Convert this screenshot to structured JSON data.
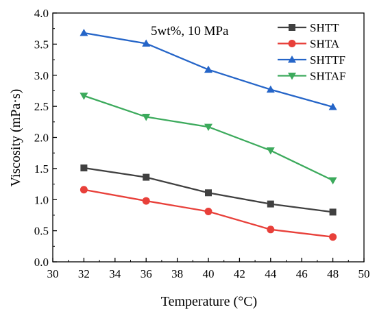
{
  "chart_data": {
    "type": "line",
    "xlabel": "Temperature (°C)",
    "ylabel": "Viscosity (mPa·s)",
    "annotation": "5wt%, 10 MPa",
    "xlim": [
      30,
      50
    ],
    "ylim": [
      0.0,
      4.0
    ],
    "x_ticks": [
      30,
      32,
      34,
      36,
      38,
      40,
      42,
      44,
      46,
      48,
      50
    ],
    "y_ticks": [
      "0.0",
      "0.5",
      "1.0",
      "1.5",
      "2.0",
      "2.5",
      "3.0",
      "3.5",
      "4.0"
    ],
    "grid": false,
    "legend_position": "top-right",
    "x": [
      32,
      36,
      40,
      44,
      48
    ],
    "series": [
      {
        "name": "SHTT",
        "color": "#404040",
        "marker": "square",
        "values": [
          1.51,
          1.36,
          1.11,
          0.93,
          0.8
        ]
      },
      {
        "name": "SHTA",
        "color": "#e8403a",
        "marker": "circle",
        "values": [
          1.16,
          0.98,
          0.81,
          0.52,
          0.4
        ]
      },
      {
        "name": "SHTTF",
        "color": "#2565c8",
        "marker": "triangle-up",
        "values": [
          3.68,
          3.51,
          3.09,
          2.77,
          2.49
        ]
      },
      {
        "name": "SHTAF",
        "color": "#3caa5c",
        "marker": "triangle-down",
        "values": [
          2.67,
          2.33,
          2.17,
          1.79,
          1.31
        ]
      }
    ]
  }
}
